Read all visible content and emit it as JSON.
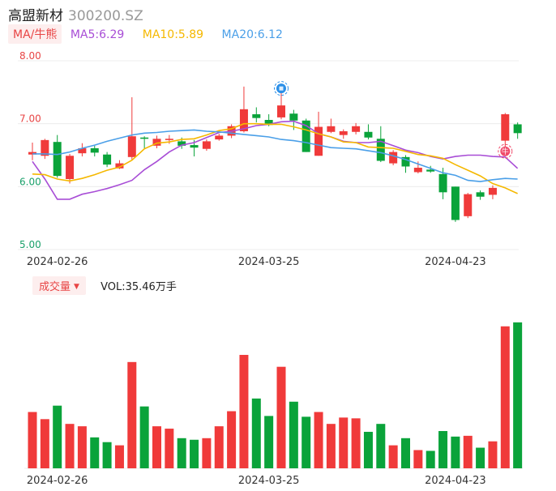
{
  "header": {
    "name": "高盟新材",
    "code": "300200.SZ"
  },
  "ma_legend": {
    "tag": "MA/牛熊",
    "items": [
      {
        "label": "MA5:6.29",
        "color": "#a84dd6"
      },
      {
        "label": "MA10:5.89",
        "color": "#f5b800"
      },
      {
        "label": "MA20:6.12",
        "color": "#4a9fe8"
      }
    ]
  },
  "volume_legend": {
    "tag": "成交量",
    "value": "VOL:35.46万手"
  },
  "colors": {
    "up": "#f03a3a",
    "down": "#0aa33a"
  },
  "chart_data": [
    {
      "type": "candlestick",
      "ylim": [
        5.0,
        8.0
      ],
      "yticks": [
        "8.00",
        "7.00",
        "6.00",
        "5.00"
      ],
      "xtick_labels": [
        {
          "label": "2024-02-26",
          "index": 2
        },
        {
          "label": "2024-03-25",
          "index": 19
        },
        {
          "label": "2024-04-23",
          "index": 34
        }
      ],
      "candles": [
        {
          "o": 6.51,
          "c": 6.55,
          "h": 6.7,
          "l": 6.42
        },
        {
          "o": 6.49,
          "c": 6.74,
          "h": 6.76,
          "l": 6.44
        },
        {
          "o": 6.71,
          "c": 6.17,
          "h": 6.82,
          "l": 6.14
        },
        {
          "o": 6.12,
          "c": 6.49,
          "h": 6.52,
          "l": 6.05
        },
        {
          "o": 6.53,
          "c": 6.61,
          "h": 6.69,
          "l": 6.48
        },
        {
          "o": 6.61,
          "c": 6.54,
          "h": 6.65,
          "l": 6.48
        },
        {
          "o": 6.51,
          "c": 6.35,
          "h": 6.55,
          "l": 6.31
        },
        {
          "o": 6.29,
          "c": 6.37,
          "h": 6.42,
          "l": 6.28
        },
        {
          "o": 6.47,
          "c": 6.8,
          "h": 7.42,
          "l": 6.43
        },
        {
          "o": 6.78,
          "c": 6.76,
          "h": 6.8,
          "l": 6.6
        },
        {
          "o": 6.65,
          "c": 6.76,
          "h": 6.81,
          "l": 6.61
        },
        {
          "o": 6.74,
          "c": 6.76,
          "h": 6.82,
          "l": 6.68
        },
        {
          "o": 6.72,
          "c": 6.65,
          "h": 6.78,
          "l": 6.6
        },
        {
          "o": 6.66,
          "c": 6.62,
          "h": 6.74,
          "l": 6.48
        },
        {
          "o": 6.6,
          "c": 6.72,
          "h": 6.75,
          "l": 6.57
        },
        {
          "o": 6.75,
          "c": 6.81,
          "h": 6.84,
          "l": 6.73
        },
        {
          "o": 6.81,
          "c": 6.96,
          "h": 6.99,
          "l": 6.77
        },
        {
          "o": 6.88,
          "c": 7.23,
          "h": 7.59,
          "l": 6.86
        },
        {
          "o": 7.15,
          "c": 7.09,
          "h": 7.26,
          "l": 7.02
        },
        {
          "o": 7.06,
          "c": 6.98,
          "h": 7.15,
          "l": 6.96
        },
        {
          "o": 7.1,
          "c": 7.29,
          "h": 7.56,
          "l": 7.07
        },
        {
          "o": 7.16,
          "c": 7.05,
          "h": 7.22,
          "l": 6.9
        },
        {
          "o": 7.05,
          "c": 6.55,
          "h": 7.08,
          "l": 6.55
        },
        {
          "o": 6.49,
          "c": 6.95,
          "h": 7.19,
          "l": 6.49
        },
        {
          "o": 6.87,
          "c": 6.96,
          "h": 7.08,
          "l": 6.85
        },
        {
          "o": 6.82,
          "c": 6.88,
          "h": 6.91,
          "l": 6.76
        },
        {
          "o": 6.87,
          "c": 6.96,
          "h": 7.01,
          "l": 6.83
        },
        {
          "o": 6.87,
          "c": 6.78,
          "h": 6.99,
          "l": 6.75
        },
        {
          "o": 6.76,
          "c": 6.41,
          "h": 6.96,
          "l": 6.39
        },
        {
          "o": 6.37,
          "c": 6.55,
          "h": 6.58,
          "l": 6.34
        },
        {
          "o": 6.47,
          "c": 6.32,
          "h": 6.5,
          "l": 6.22
        },
        {
          "o": 6.23,
          "c": 6.3,
          "h": 6.4,
          "l": 6.21
        },
        {
          "o": 6.27,
          "c": 6.24,
          "h": 6.33,
          "l": 6.22
        },
        {
          "o": 6.2,
          "c": 5.91,
          "h": 6.3,
          "l": 5.8
        },
        {
          "o": 6.0,
          "c": 5.47,
          "h": 6.0,
          "l": 5.44
        },
        {
          "o": 5.53,
          "c": 5.88,
          "h": 5.9,
          "l": 5.5
        },
        {
          "o": 5.91,
          "c": 5.84,
          "h": 5.94,
          "l": 5.79
        },
        {
          "o": 5.87,
          "c": 5.98,
          "h": 6.02,
          "l": 5.8
        },
        {
          "o": 6.73,
          "c": 7.15,
          "h": 7.17,
          "l": 6.6
        },
        {
          "o": 6.99,
          "c": 6.85,
          "h": 7.02,
          "l": 6.76
        }
      ],
      "ma5": [
        6.4,
        6.12,
        5.8,
        5.8,
        5.88,
        5.92,
        5.97,
        6.03,
        6.1,
        6.27,
        6.4,
        6.55,
        6.66,
        6.7,
        6.78,
        6.86,
        6.88,
        6.92,
        6.97,
        6.99,
        7.03,
        7.04,
        6.97,
        6.84,
        6.79,
        6.72,
        6.7,
        6.7,
        6.72,
        6.65,
        6.58,
        6.54,
        6.48,
        6.44,
        6.48,
        6.5,
        6.5,
        6.48,
        6.47,
        6.29
      ],
      "ma10": [
        6.2,
        6.19,
        6.12,
        6.09,
        6.13,
        6.19,
        6.26,
        6.31,
        6.42,
        6.6,
        6.69,
        6.71,
        6.75,
        6.76,
        6.82,
        6.89,
        6.92,
        7.0,
        7.0,
        6.99,
        6.99,
        6.95,
        6.9,
        6.84,
        6.79,
        6.71,
        6.7,
        6.63,
        6.62,
        6.61,
        6.56,
        6.51,
        6.49,
        6.45,
        6.35,
        6.26,
        6.17,
        6.05,
        5.98,
        5.89
      ],
      "ma20": [
        6.52,
        6.52,
        6.51,
        6.55,
        6.61,
        6.66,
        6.72,
        6.77,
        6.82,
        6.85,
        6.86,
        6.88,
        6.89,
        6.9,
        6.88,
        6.87,
        6.85,
        6.83,
        6.81,
        6.79,
        6.75,
        6.73,
        6.7,
        6.66,
        6.62,
        6.61,
        6.6,
        6.57,
        6.54,
        6.49,
        6.43,
        6.36,
        6.29,
        6.22,
        6.18,
        6.1,
        6.08,
        6.11,
        6.13,
        6.12
      ],
      "markers": [
        {
          "index": 20,
          "label": "",
          "kind": "blue-circle"
        },
        {
          "index": 38,
          "label": "牛",
          "kind": "red-circle"
        }
      ]
    },
    {
      "type": "bar",
      "name": "volume",
      "values": [
        7.1,
        6.2,
        7.9,
        5.6,
        5.3,
        3.9,
        3.3,
        2.9,
        13.4,
        7.8,
        5.3,
        5.0,
        3.8,
        3.6,
        3.8,
        5.3,
        7.2,
        14.3,
        8.8,
        6.6,
        12.8,
        8.4,
        6.5,
        7.1,
        5.6,
        6.4,
        6.3,
        4.6,
        5.6,
        2.9,
        3.8,
        2.3,
        2.2,
        4.7,
        4.0,
        4.1,
        2.6,
        3.4,
        17.9,
        18.4
      ],
      "ylim": [
        0,
        19
      ]
    }
  ]
}
